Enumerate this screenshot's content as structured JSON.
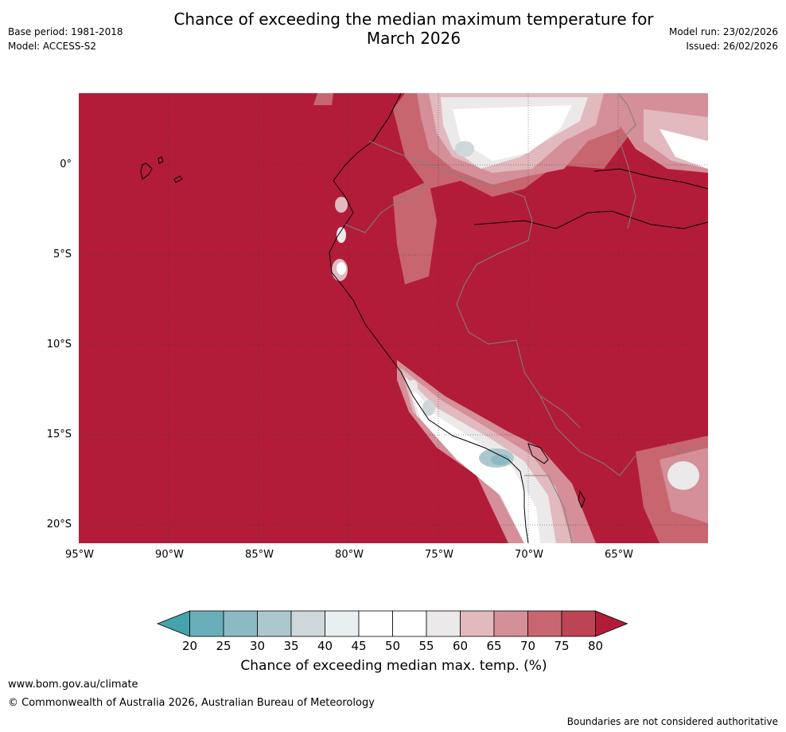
{
  "title": {
    "line1": "Chance of exceeding the median maximum temperature for",
    "line2": "March 2026"
  },
  "meta_left": {
    "base_period": "Base period: 1981-2018",
    "model": "Model: ACCESS-S2"
  },
  "meta_right": {
    "model_run": "Model run: 23/02/2026",
    "issued": "Issued: 26/02/2026"
  },
  "map": {
    "lat_labels": [
      "0°",
      "5°S",
      "10°S",
      "15°S",
      "20°S"
    ],
    "lon_labels": [
      "95°W",
      "90°W",
      "85°W",
      "80°W",
      "75°W",
      "70°W",
      "65°W"
    ],
    "ocean_color": "#b31c38"
  },
  "colorbar": {
    "ticks": [
      "20",
      "25",
      "30",
      "35",
      "40",
      "45",
      "50",
      "55",
      "60",
      "65",
      "70",
      "75",
      "80"
    ],
    "colors": [
      "#6aaeb9",
      "#8cbac4",
      "#abc8cd",
      "#cfd7da",
      "#e9eef1",
      "#ffffff",
      "#ffffff",
      "#ebe9ea",
      "#e1b9bf",
      "#d48f98",
      "#c86670",
      "#bd4453"
    ],
    "under_color": "#46a3ad",
    "over_color": "#b31c38",
    "label": "Chance of exceeding median max. temp. (%)"
  },
  "footer": {
    "website": "www.bom.gov.au/climate",
    "copyright": "© Commonwealth of Australia 2026, Australian Bureau of Meteorology",
    "disclaimer": "Boundaries are not considered authoritative"
  }
}
